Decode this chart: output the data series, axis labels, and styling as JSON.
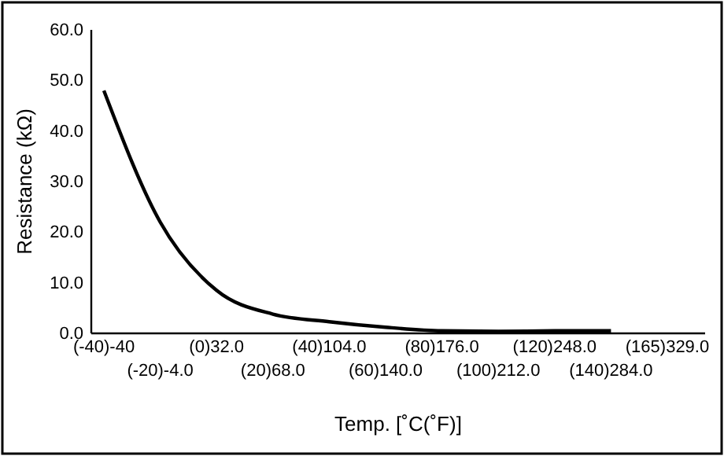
{
  "chart_data": {
    "type": "line",
    "xlabel": "Temp. [˚C(˚F)]",
    "ylabel": "Resistance (kΩ)",
    "categories": [
      "(-40)-40",
      "(-20)-4.0",
      "(0)32.0",
      "(20)68.0",
      "(40)104.0",
      "(60)140.0",
      "(80)176.0",
      "(100)212.0",
      "(120)248.0",
      "(140)284.0",
      "(165)329.0"
    ],
    "series": [
      {
        "color": "#000000",
        "values": [
          48,
          22,
          8.5,
          3.8,
          2.3,
          1.2,
          0.5,
          0.4,
          0.5,
          0.5,
          null
        ]
      }
    ],
    "ylim": [
      0,
      60
    ],
    "yticks": [
      {
        "value": 0,
        "label": "0.0"
      },
      {
        "value": 10,
        "label": "10.0"
      },
      {
        "value": 20,
        "label": "20.0"
      },
      {
        "value": 30,
        "label": "30.0"
      },
      {
        "value": 40,
        "label": "40.0"
      },
      {
        "value": 50,
        "label": "50.0"
      },
      {
        "value": 60,
        "label": "60.0"
      }
    ],
    "grid": false,
    "marker": "none",
    "line_style": "solid"
  }
}
